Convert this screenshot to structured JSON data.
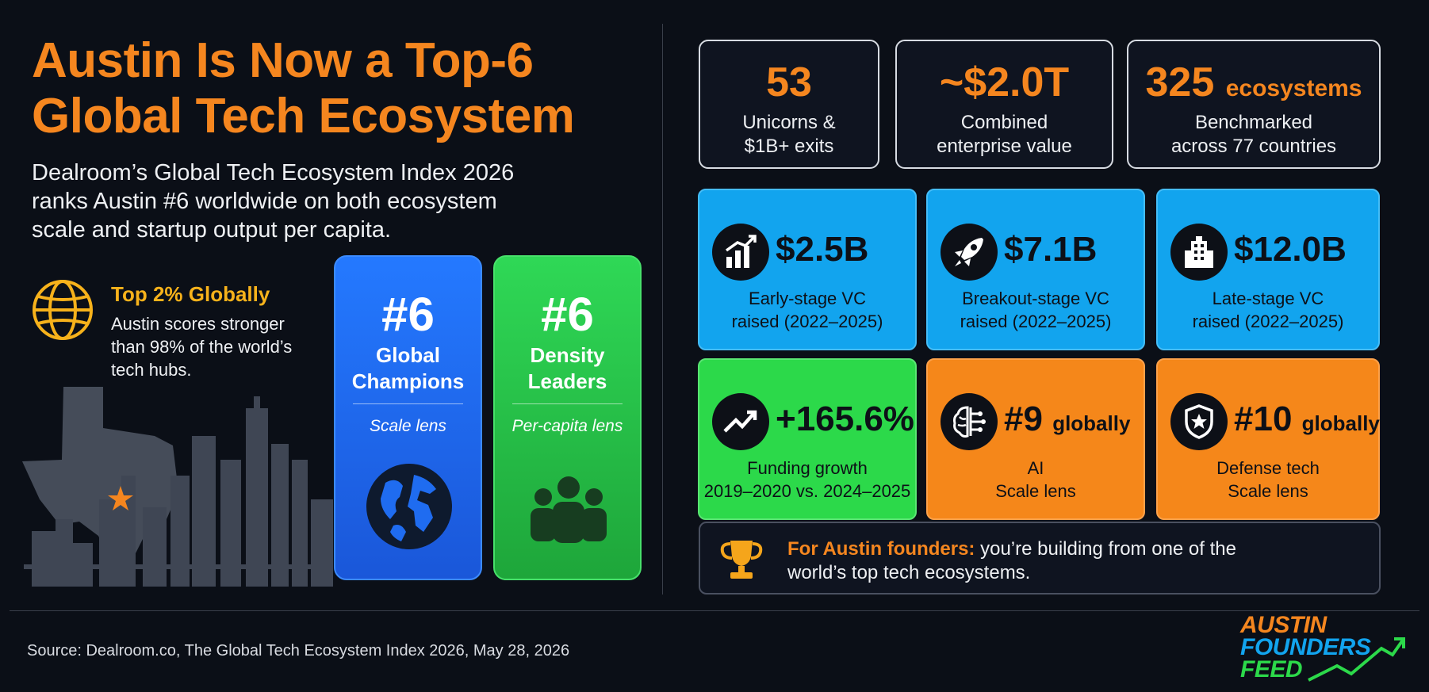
{
  "title": {
    "line1": "Austin Is Now a Top-6",
    "line2": "Global Tech Ecosystem"
  },
  "subtitle": {
    "line1": "Dealroom’s Global Tech Ecosystem Index 2026",
    "line2": "ranks Austin #6 worldwide on both ecosystem",
    "line3": "scale and startup output per capita."
  },
  "top2": {
    "heading": "Top 2% Globally",
    "line1": "Austin scores stronger",
    "line2": "than 98% of the world’s",
    "line3": "tech hubs.",
    "icon": "globe-icon"
  },
  "rank_cards": [
    {
      "rank": "#6",
      "line1": "Global",
      "line2": "Champions",
      "lens": "Scale lens",
      "icon": "earth-icon",
      "color": "#1f6cf0"
    },
    {
      "rank": "#6",
      "line1": "Density",
      "line2": "Leaders",
      "lens": "Per-capita lens",
      "icon": "people-icon",
      "color": "#28c64a"
    }
  ],
  "stats": [
    {
      "value": "53",
      "unit": "",
      "line1": "Unicorns &",
      "line2": "$1B+ exits"
    },
    {
      "value": "~$2.0T",
      "unit": "",
      "line1": "Combined",
      "line2": "enterprise value"
    },
    {
      "value": "325",
      "unit": "ecosystems",
      "line1": "Benchmarked",
      "line2": "across 77 countries"
    }
  ],
  "funding": [
    {
      "value": "$2.5B",
      "unit": "",
      "line1": "Early-stage VC",
      "line2": "raised (2022–2025)",
      "icon": "bar-chart-icon"
    },
    {
      "value": "$7.1B",
      "unit": "",
      "line1": "Breakout-stage VC",
      "line2": "raised (2022–2025)",
      "icon": "rocket-icon"
    },
    {
      "value": "$12.0B",
      "unit": "",
      "line1": "Late-stage VC",
      "line2": "raised (2022–2025)",
      "icon": "building-icon"
    },
    {
      "value": "+165.6%",
      "unit": "",
      "line1": "Funding growth",
      "line2": "2019–2020 vs. 2024–2025",
      "icon": "trend-up-icon"
    },
    {
      "value": "#9",
      "unit": "globally",
      "line1": "AI",
      "line2": "Scale lens",
      "icon": "brain-icon"
    },
    {
      "value": "#10",
      "unit": "globally",
      "line1": "Defense tech",
      "line2": "Scale lens",
      "icon": "shield-star-icon"
    }
  ],
  "founders": {
    "lead": "For Austin founders:",
    "line1": "you’re building from one of the",
    "line2": "world’s top tech ecosystems.",
    "icon": "trophy-icon"
  },
  "source": "Source: Dealroom.co, The Global Tech Ecosystem Index 2026, May 28, 2026",
  "logo": {
    "line1": "AUSTIN",
    "line2": "FOUNDERS",
    "line3": "FEED"
  },
  "colors": {
    "accent": "#f5861f",
    "gold": "#f7b21b",
    "blue": "#12a4ee",
    "green": "#2cd94a",
    "orange": "#f5871a",
    "background": "#0b0f17"
  }
}
